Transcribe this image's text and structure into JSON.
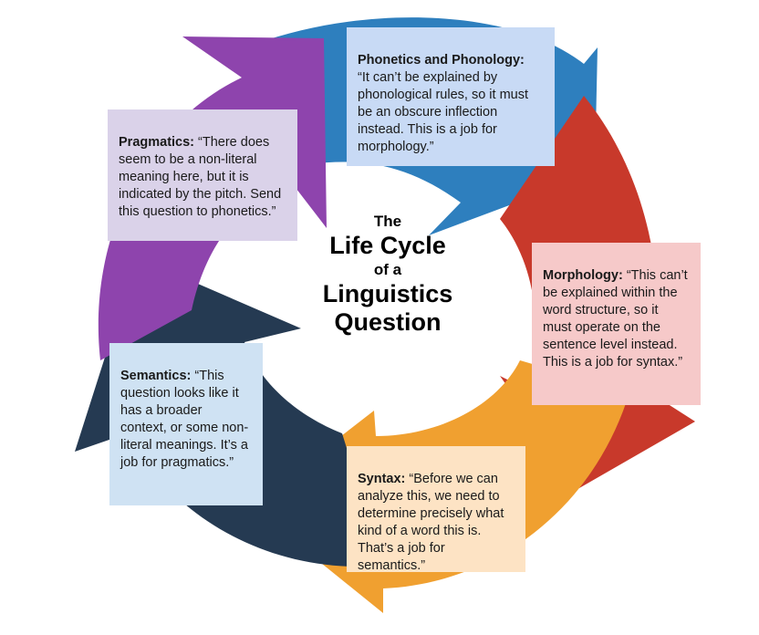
{
  "colors": {
    "phonetics": "#2e7fbe",
    "morphology": "#c8392b",
    "syntax": "#f0a030",
    "semantics": "#253a52",
    "pragmatics": "#8e44ad",
    "phonetics_box": "#c8daf5",
    "morphology_box": "#f6c9c9",
    "syntax_box": "#fde3c4",
    "semantics_box": "#cfe2f3",
    "pragmatics_box": "#dad2e9"
  },
  "title": {
    "line1": "The",
    "line2": "Life Cycle",
    "line3": "of a",
    "line4": "Linguistics",
    "line5": "Question"
  },
  "boxes": {
    "phonetics": {
      "heading": "Phonetics and Phonology:",
      "text": "\n“It can’t be explained by phonological rules, so it must be an obscure inflection instead. This is a job for morphology.”"
    },
    "morphology": {
      "heading": "Morphology:",
      "text": " “This can’t be explained within the word structure, so it must operate on the sentence level instead. This is a job for syntax.”"
    },
    "syntax": {
      "heading": "Syntax:",
      "text": " “Before we can analyze this, we need to determine precisely what kind of a word this is. That’s a job for semantics.”"
    },
    "semantics": {
      "heading": "Semantics:",
      "text": " “This question looks like it has a broader context, or some non-literal meanings. It’s a job for pragmatics.”"
    },
    "pragmatics": {
      "heading": "Pragmatics:",
      "text": " “There does seem to be a non-literal meaning here, but it is indicated by the pitch. Send this question to phonetics.”"
    }
  }
}
